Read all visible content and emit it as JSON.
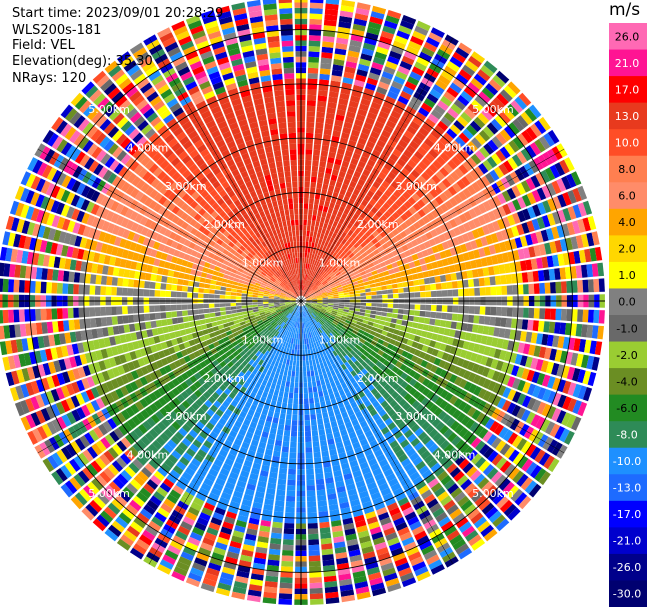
{
  "header": {
    "start_time": "Start time: 2023/09/01 20:28:29",
    "instrument": "WLS200s-181",
    "field": "Field: VEL",
    "elevation": "Elevation(deg): 35.30",
    "nrays": "NRays: 120"
  },
  "colorbar": {
    "unit": "m/s",
    "ticks": [
      "26.0",
      "21.0",
      "17.0",
      "13.0",
      "10.0",
      "8.0",
      "6.0",
      "4.0",
      "2.0",
      "1.0",
      "0.0",
      "-1.0",
      "-2.0",
      "-4.0",
      "-6.0",
      "-8.0",
      "-10.0",
      "-13.0",
      "-17.0",
      "-21.0",
      "-26.0",
      "-30.0"
    ],
    "colors": [
      "#ff69b4",
      "#ff1493",
      "#ff0000",
      "#e83a1e",
      "#ff4d26",
      "#ff7f50",
      "#ff8c69",
      "#ffa500",
      "#ffd700",
      "#ffff00",
      "#808080",
      "#696969",
      "#9acd32",
      "#6b8e23",
      "#228b22",
      "#2e8b57",
      "#1e90ff",
      "#1e6bff",
      "#0000ff",
      "#0000cd",
      "#00008b",
      "#000070"
    ]
  },
  "chart_data": {
    "type": "ppi",
    "field": "VEL",
    "units": "m/s",
    "elevation_deg": 35.3,
    "n_rays": 120,
    "range_rings_km": [
      1.0,
      2.0,
      3.0,
      4.0,
      5.0
    ],
    "ring_labels": [
      "1.00km",
      "2.00km",
      "3.00km",
      "4.00km",
      "5.00km"
    ],
    "max_range_km": 5.6,
    "velocity_field_by_sector": [
      {
        "azimuth_range_deg": [
          -60,
          60
        ],
        "region": "north",
        "velocity_ms": [
          10,
          13
        ]
      },
      {
        "azimuth_range_deg": [
          60,
          90
        ],
        "region": "east",
        "velocity_ms": [
          2,
          6
        ]
      },
      {
        "azimuth_range_deg": [
          90,
          120
        ],
        "region": "east-southeast",
        "velocity_ms": [
          -4,
          0
        ]
      },
      {
        "azimuth_range_deg": [
          120,
          240
        ],
        "region": "south",
        "velocity_ms": [
          -17,
          -8
        ]
      },
      {
        "azimuth_range_deg": [
          240,
          270
        ],
        "region": "west-southwest",
        "velocity_ms": [
          -4,
          0
        ]
      },
      {
        "azimuth_range_deg": [
          270,
          300
        ],
        "region": "west",
        "velocity_ms": [
          2,
          6
        ]
      }
    ],
    "noise_beyond_km": 4.1
  }
}
